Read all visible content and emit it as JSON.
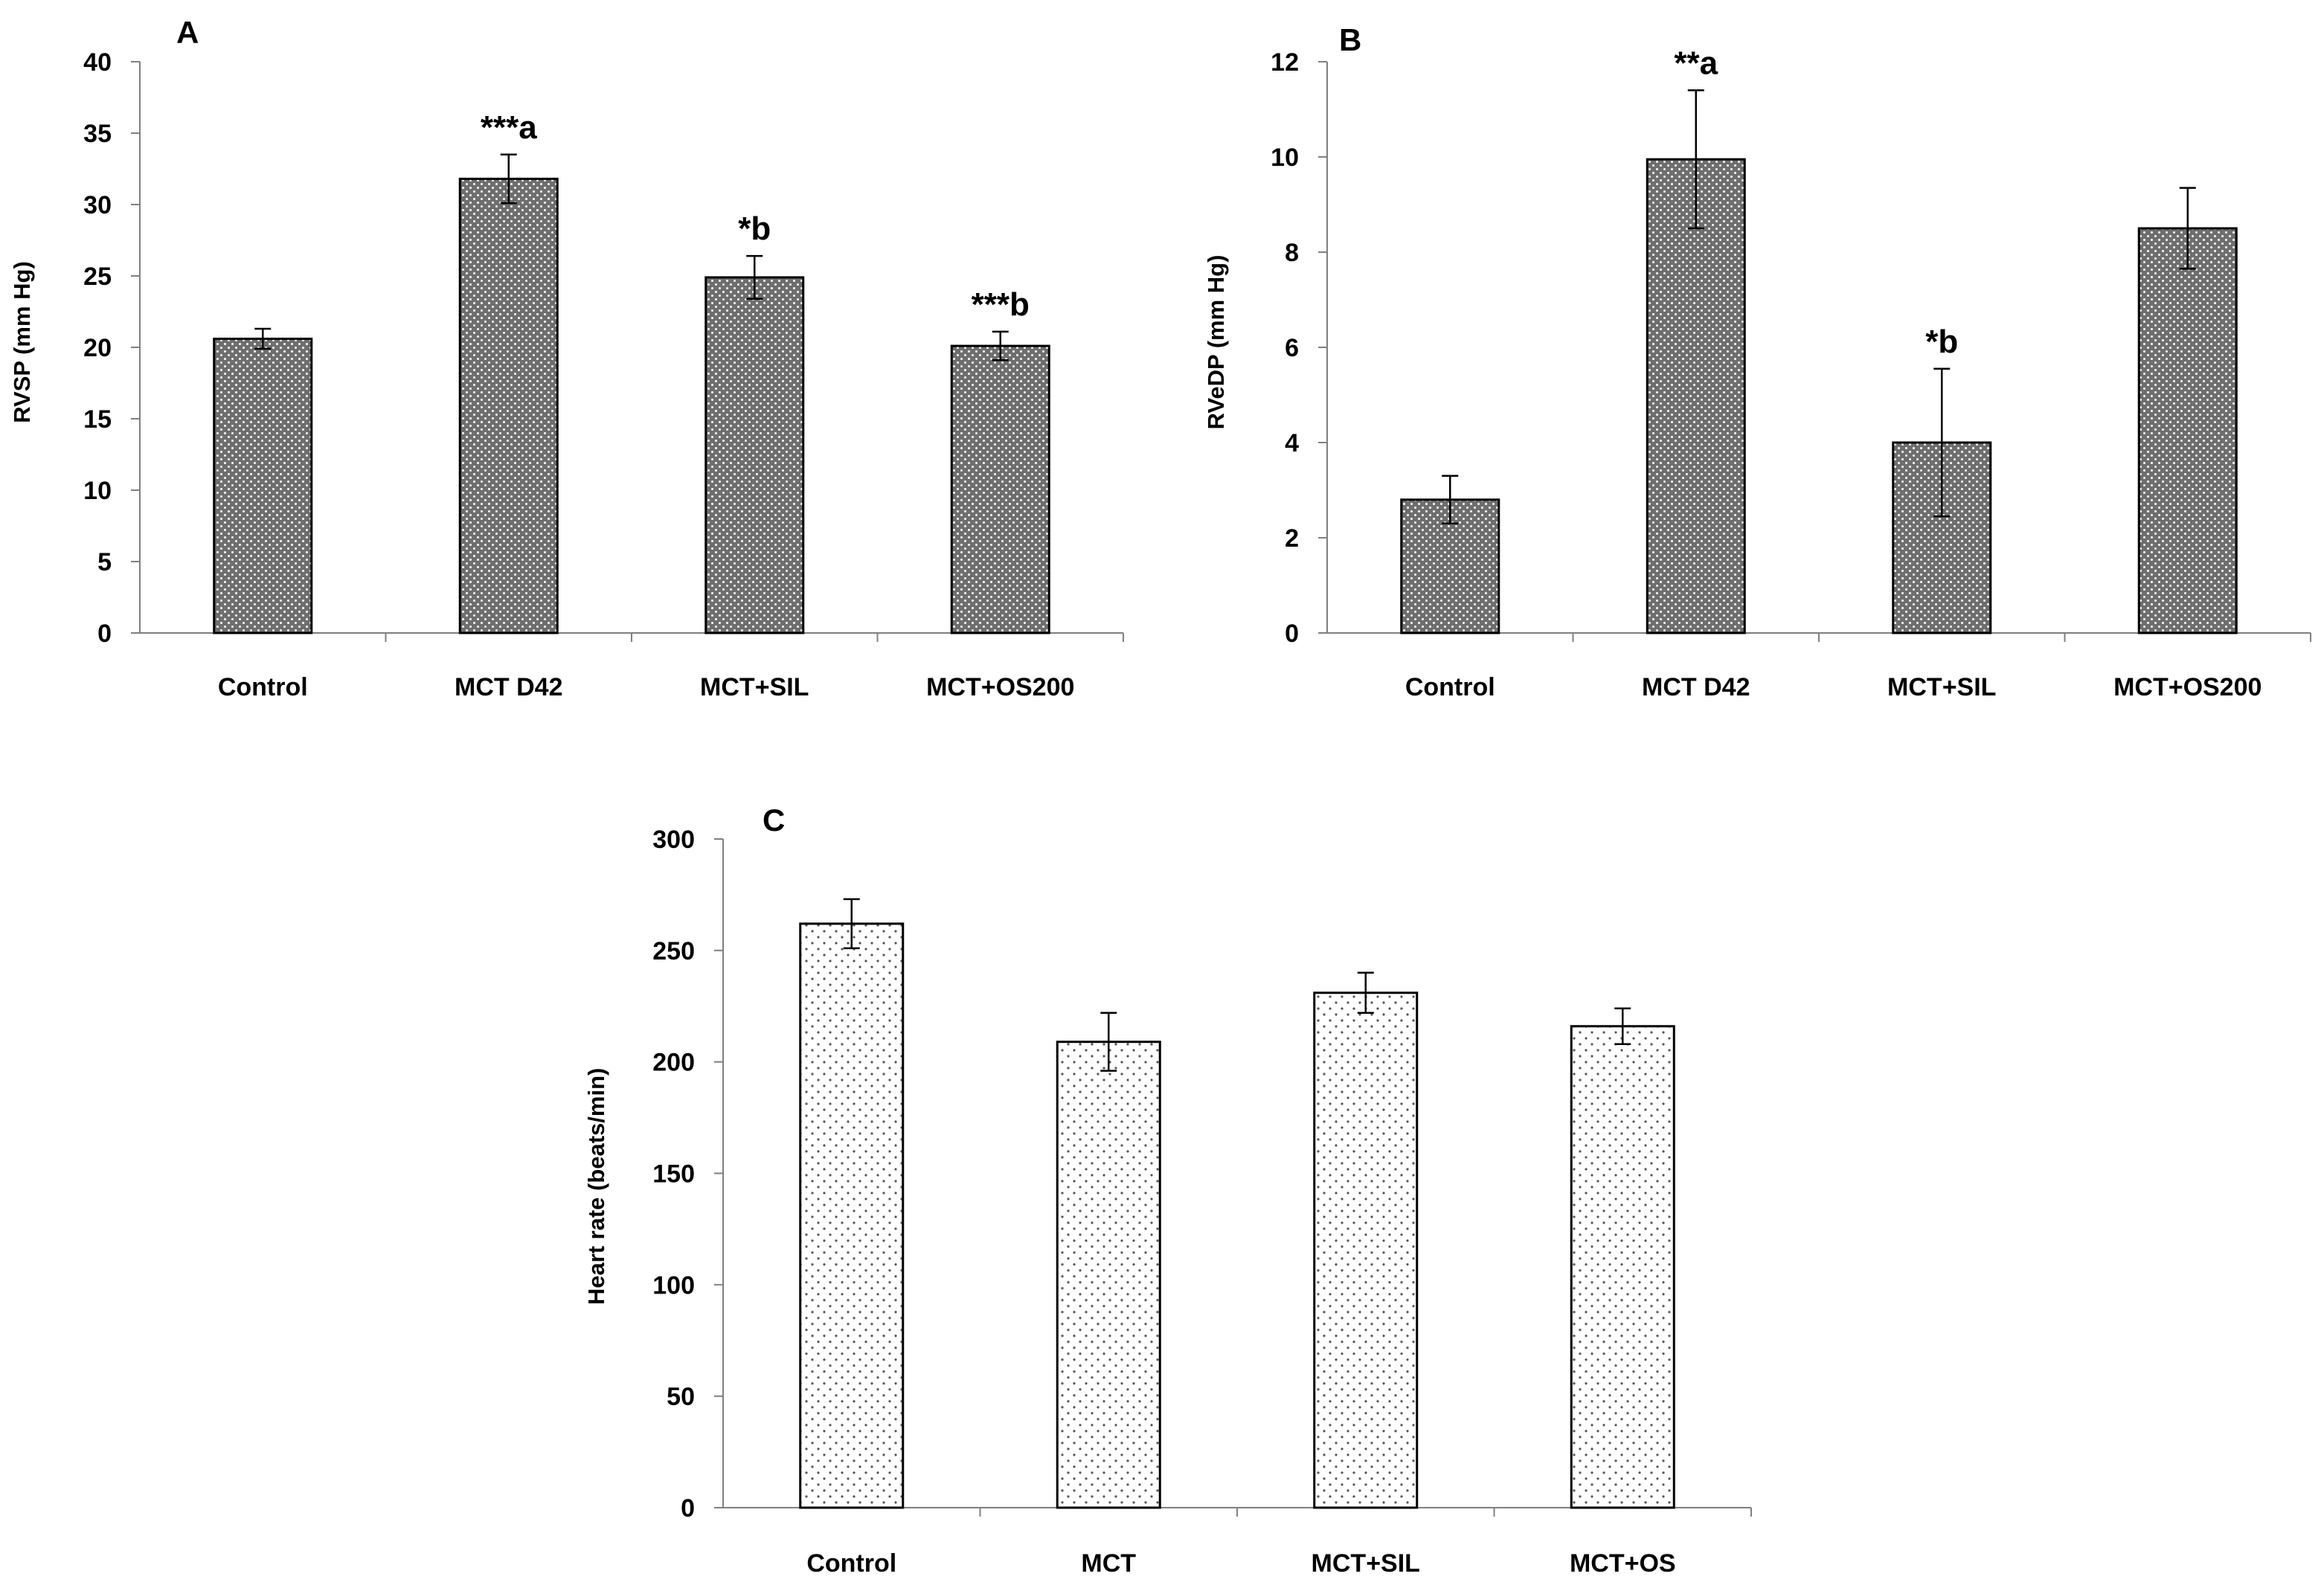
{
  "chart_data": [
    {
      "panel": "A",
      "type": "bar",
      "ylabel": "RVSP (mm Hg)",
      "xlabel": "",
      "ylim": [
        0,
        40
      ],
      "yticks": [
        0,
        5,
        10,
        15,
        20,
        25,
        30,
        35,
        40
      ],
      "categories": [
        "Control",
        "MCT D42",
        "MCT+SIL",
        "MCT+OS200"
      ],
      "values": [
        20.6,
        31.8,
        24.9,
        20.1
      ],
      "errors": [
        0.7,
        1.7,
        1.5,
        1.0
      ],
      "annotations": [
        "",
        "***a",
        "*b",
        "***b"
      ],
      "fill_pattern": "dense-dots-dark"
    },
    {
      "panel": "B",
      "type": "bar",
      "ylabel": "RVeDP (mm Hg)",
      "xlabel": "",
      "ylim": [
        0,
        12
      ],
      "yticks": [
        0,
        2,
        4,
        6,
        8,
        10,
        12
      ],
      "categories": [
        "Control",
        "MCT D42",
        "MCT+SIL",
        "MCT+OS200"
      ],
      "values": [
        2.8,
        9.95,
        4.0,
        8.5
      ],
      "errors": [
        0.5,
        1.45,
        1.55,
        0.85
      ],
      "annotations": [
        "",
        "**a",
        "*b",
        ""
      ],
      "fill_pattern": "dense-dots-dark"
    },
    {
      "panel": "C",
      "type": "bar",
      "ylabel": "Heart rate (beats/min)",
      "xlabel": "",
      "ylim": [
        0,
        300
      ],
      "yticks": [
        0,
        50,
        100,
        150,
        200,
        250,
        300
      ],
      "categories": [
        "Control",
        "MCT",
        "MCT+SIL",
        "MCT+OS"
      ],
      "values": [
        262,
        209,
        231,
        216
      ],
      "errors": [
        11,
        13,
        9,
        8
      ],
      "annotations": [
        "",
        "",
        "",
        ""
      ],
      "fill_pattern": "sparse-dots-light"
    }
  ]
}
